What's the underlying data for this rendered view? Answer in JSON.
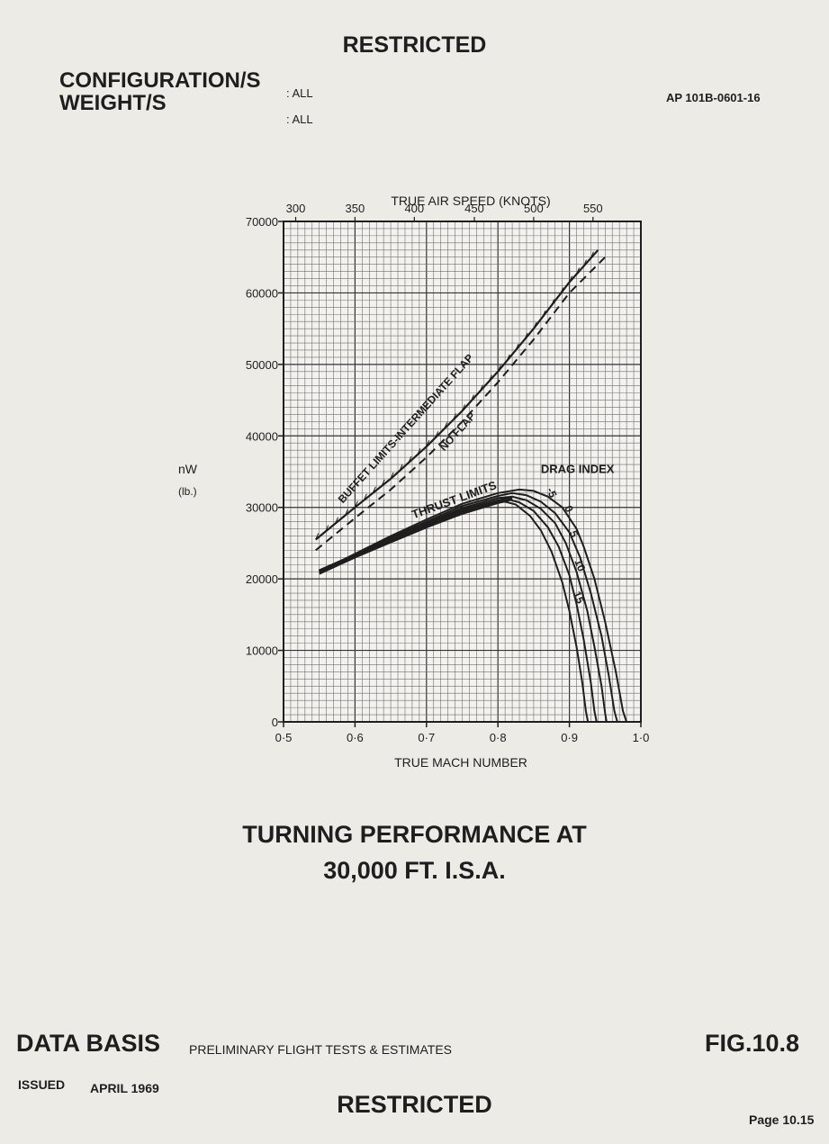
{
  "header": {
    "restricted": "RESTRICTED",
    "configuration_label": "CONFIGURATION/S",
    "configuration_value": ": ALL",
    "weight_label": "WEIGHT/S",
    "weight_value": ": ALL",
    "document_ref": "AP 101B-0601-16"
  },
  "chart_data": {
    "type": "line",
    "xlabel": "TRUE MACH NUMBER",
    "x_top_label": "TRUE AIR SPEED (KNOTS)",
    "ylabel": "nW",
    "ylabel_unit": "(lb.)",
    "xlim": [
      0.5,
      1.0
    ],
    "ylim": [
      0,
      70000
    ],
    "x_ticks": [
      "0·5",
      "0·6",
      "0·7",
      "0·8",
      "0·9",
      "1·0"
    ],
    "x_tick_values": [
      0.5,
      0.6,
      0.7,
      0.8,
      0.9,
      1.0
    ],
    "y_ticks": [
      "0",
      "10000",
      "20000",
      "30000",
      "40000",
      "50000",
      "60000",
      "70000"
    ],
    "y_tick_values": [
      0,
      10000,
      20000,
      30000,
      40000,
      50000,
      60000,
      70000
    ],
    "x_top_ticks": [
      "300",
      "350",
      "400",
      "450",
      "500",
      "550"
    ],
    "x_top_tick_mach": [
      0.517,
      0.6,
      0.683,
      0.767,
      0.85,
      0.933
    ],
    "grid": true,
    "annotations": {
      "buffet_label": "BUFFET LIMITS-INTERMEDIATE FLAP",
      "no_flap_label": "NO FLAP",
      "thrust_label": "THRUST LIMITS",
      "drag_index_label": "DRAG INDEX",
      "drag_index_values": [
        "-5",
        "0",
        "5",
        "10",
        "15"
      ]
    },
    "series": [
      {
        "name": "BUFFET LIMITS-INTERMEDIATE FLAP",
        "style": "hatched",
        "x": [
          0.545,
          0.6,
          0.65,
          0.7,
          0.75,
          0.8,
          0.85,
          0.9,
          0.94
        ],
        "y": [
          25500,
          30000,
          34000,
          38500,
          43500,
          49000,
          55000,
          61500,
          66000
        ]
      },
      {
        "name": "NO FLAP",
        "style": "dashed",
        "x": [
          0.545,
          0.6,
          0.65,
          0.7,
          0.75,
          0.8,
          0.85,
          0.9,
          0.95
        ],
        "y": [
          24000,
          28500,
          32500,
          37000,
          42000,
          47500,
          53500,
          60000,
          65000
        ]
      },
      {
        "name": "THRUST LIMITS",
        "style": "band",
        "x": [
          0.55,
          0.6,
          0.65,
          0.7,
          0.75,
          0.8,
          0.82
        ],
        "y": [
          21000,
          23200,
          25300,
          27400,
          29300,
          30800,
          31300
        ]
      },
      {
        "name": "-5",
        "x": [
          0.55,
          0.6,
          0.65,
          0.7,
          0.75,
          0.8,
          0.83,
          0.85,
          0.87,
          0.89,
          0.91,
          0.92,
          0.935,
          0.95,
          0.965,
          0.975,
          0.98
        ],
        "y": [
          21000,
          23500,
          26000,
          28300,
          30500,
          32000,
          32500,
          32300,
          31500,
          30000,
          27000,
          24500,
          20000,
          14000,
          7000,
          1500,
          0
        ]
      },
      {
        "name": "0",
        "x": [
          0.55,
          0.6,
          0.65,
          0.7,
          0.75,
          0.8,
          0.82,
          0.84,
          0.86,
          0.88,
          0.9,
          0.915,
          0.93,
          0.945,
          0.955,
          0.963,
          0.967
        ],
        "y": [
          21000,
          23400,
          25800,
          28000,
          30200,
          31600,
          32000,
          31700,
          30800,
          29200,
          26500,
          23000,
          18000,
          12000,
          6500,
          1500,
          0
        ]
      },
      {
        "name": "5",
        "x": [
          0.55,
          0.6,
          0.65,
          0.7,
          0.75,
          0.8,
          0.82,
          0.84,
          0.86,
          0.88,
          0.895,
          0.91,
          0.925,
          0.935,
          0.945,
          0.95,
          0.952
        ],
        "y": [
          20900,
          23200,
          25600,
          27800,
          29900,
          31300,
          31500,
          31000,
          29800,
          27800,
          25000,
          21000,
          15500,
          10500,
          5000,
          1200,
          0
        ]
      },
      {
        "name": "10",
        "x": [
          0.55,
          0.6,
          0.65,
          0.7,
          0.75,
          0.8,
          0.815,
          0.83,
          0.85,
          0.87,
          0.885,
          0.9,
          0.91,
          0.92,
          0.93,
          0.935,
          0.938
        ],
        "y": [
          20800,
          23100,
          25400,
          27600,
          29700,
          31000,
          31100,
          30700,
          29500,
          27200,
          24500,
          20500,
          16500,
          11500,
          5500,
          1500,
          0
        ]
      },
      {
        "name": "15",
        "x": [
          0.55,
          0.6,
          0.65,
          0.7,
          0.75,
          0.8,
          0.81,
          0.825,
          0.845,
          0.86,
          0.875,
          0.89,
          0.9,
          0.91,
          0.918,
          0.923,
          0.926
        ],
        "y": [
          20700,
          23000,
          25200,
          27400,
          29500,
          30700,
          30800,
          30400,
          28800,
          26800,
          23800,
          19500,
          15500,
          10500,
          5500,
          1500,
          0
        ]
      }
    ]
  },
  "figure_title_line1": "TURNING PERFORMANCE AT",
  "figure_title_line2": "30,000 FT. I.S.A.",
  "footer": {
    "data_basis_label": "DATA BASIS",
    "data_basis_value": "PRELIMINARY FLIGHT TESTS & ESTIMATES",
    "figure_number": "FIG.10.8",
    "issued_label": "ISSUED",
    "issued_value": "APRIL 1969",
    "restricted": "RESTRICTED",
    "page": "Page 10.15"
  }
}
